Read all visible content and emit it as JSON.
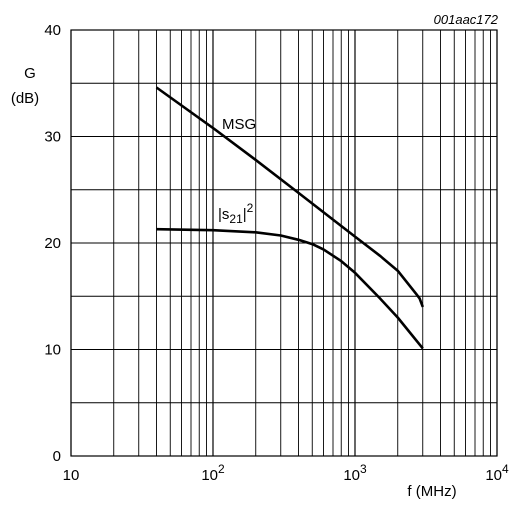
{
  "chart_data": {
    "type": "line",
    "figure_id": "001aac172",
    "xlabel": "f (MHz)",
    "ylabel_line1": "G",
    "ylabel_line2": "(dB)",
    "x_scale": "log",
    "xlim": [
      10,
      10000
    ],
    "ylim": [
      0,
      40
    ],
    "grid": true,
    "x_tick_labels": [
      {
        "value": 10,
        "base": "10",
        "exp": ""
      },
      {
        "value": 100,
        "base": "10",
        "exp": "2"
      },
      {
        "value": 1000,
        "base": "10",
        "exp": "3"
      },
      {
        "value": 10000,
        "base": "10",
        "exp": "4"
      }
    ],
    "y_ticks": [
      0,
      10,
      20,
      30,
      40
    ],
    "series": [
      {
        "name": "MSG",
        "label_text": "MSG",
        "x": [
          40,
          100,
          200,
          400,
          700,
          1000,
          1500,
          2000,
          2700,
          2850,
          3000
        ],
        "y": [
          34.6,
          30.8,
          27.8,
          24.7,
          22.2,
          20.6,
          18.8,
          17.4,
          15.2,
          14.8,
          14.0
        ]
      },
      {
        "name": "|s21|2",
        "label_text": {
          "pre": "|s",
          "sub": "21",
          "post": "|",
          "sup": "2"
        },
        "x": [
          40,
          100,
          200,
          300,
          400,
          500,
          600,
          800,
          1000,
          1500,
          2000,
          3000
        ],
        "y": [
          21.3,
          21.2,
          21.0,
          20.7,
          20.3,
          19.9,
          19.4,
          18.3,
          17.2,
          14.8,
          13.0,
          10.1
        ]
      }
    ]
  }
}
